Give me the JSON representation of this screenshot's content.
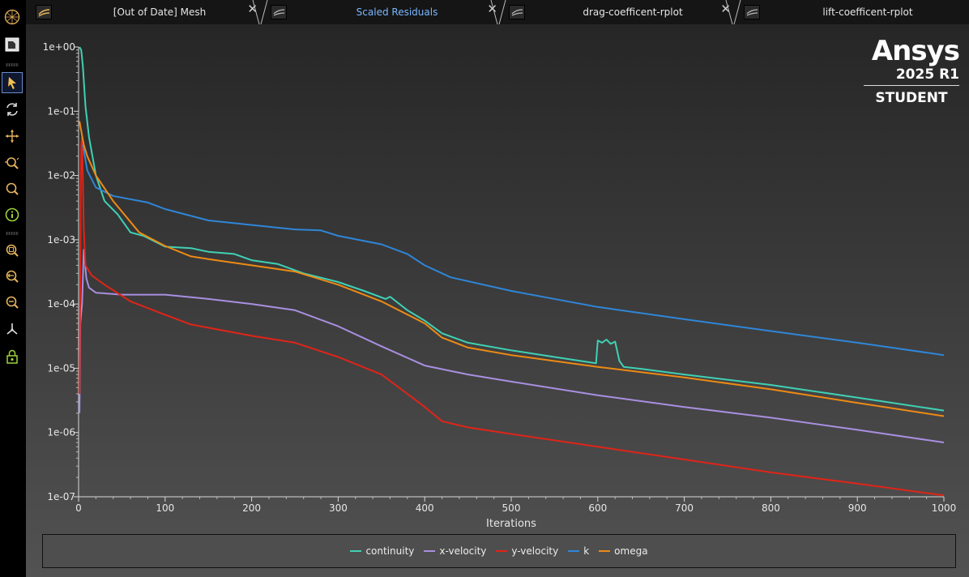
{
  "tabs": [
    {
      "label": "[Out of Date] Mesh",
      "active": false
    },
    {
      "label": "Scaled Residuals",
      "active": true
    },
    {
      "label": "drag-coefficent-rplot",
      "active": false
    },
    {
      "label": "lift-coefficent-rplot",
      "active": false
    }
  ],
  "tab_close_glyph": "✕",
  "toolbar": {
    "items": [
      {
        "name": "mesh-display-icon"
      },
      {
        "name": "select-icon"
      },
      {
        "name": "rotate-icon"
      },
      {
        "name": "pan-icon"
      },
      {
        "name": "zoom-box-icon"
      },
      {
        "name": "zoom-icon"
      },
      {
        "name": "probe-info-icon"
      },
      {
        "name": "fit-to-window-icon"
      },
      {
        "name": "zoom-in-icon"
      },
      {
        "name": "zoom-out-icon"
      },
      {
        "name": "axes-orientation-icon"
      },
      {
        "name": "view-lock-icon"
      }
    ]
  },
  "brand": {
    "name": "Ansys",
    "release": "2025 R1",
    "edition": "STUDENT"
  },
  "colors": {
    "continuity": "#3fd1b4",
    "x-velocity": "#a88fe0",
    "y-velocity": "#e02418",
    "k": "#2f86d8",
    "omega": "#ee8a14"
  },
  "chart_data": {
    "type": "line",
    "title": "",
    "xlabel": "Iterations",
    "ylabel": "",
    "xlim": [
      0,
      1000
    ],
    "ylim": [
      1e-07,
      1
    ],
    "yscale": "log",
    "x_ticks": [
      "0",
      "100",
      "200",
      "300",
      "400",
      "500",
      "600",
      "700",
      "800",
      "900",
      "1000"
    ],
    "y_ticks": [
      "1e-07",
      "1e-06",
      "1e-05",
      "1e-04",
      "1e-03",
      "1e-02",
      "1e-01",
      "1e+00"
    ],
    "grid": false,
    "legend": "bottom",
    "series": [
      {
        "name": "continuity",
        "color": "#3fd1b4",
        "points": [
          [
            1,
            1
          ],
          [
            3,
            0.9
          ],
          [
            5,
            0.5
          ],
          [
            8,
            0.12
          ],
          [
            12,
            0.04
          ],
          [
            20,
            0.01
          ],
          [
            30,
            0.004
          ],
          [
            45,
            0.0025
          ],
          [
            60,
            0.0013
          ],
          [
            75,
            0.00115
          ],
          [
            100,
            0.00078
          ],
          [
            130,
            0.00074
          ],
          [
            150,
            0.00065
          ],
          [
            180,
            0.0006
          ],
          [
            200,
            0.00048
          ],
          [
            230,
            0.00042
          ],
          [
            260,
            0.0003
          ],
          [
            300,
            0.00022
          ],
          [
            330,
            0.00016
          ],
          [
            355,
            0.00012
          ],
          [
            360,
            0.00013
          ],
          [
            380,
            8e-05
          ],
          [
            400,
            5.5e-05
          ],
          [
            420,
            3.5e-05
          ],
          [
            450,
            2.5e-05
          ],
          [
            500,
            1.9e-05
          ],
          [
            550,
            1.5e-05
          ],
          [
            598,
            1.2e-05
          ],
          [
            600,
            2.7e-05
          ],
          [
            605,
            2.5e-05
          ],
          [
            610,
            2.8e-05
          ],
          [
            615,
            2.4e-05
          ],
          [
            620,
            2.6e-05
          ],
          [
            625,
            1.3e-05
          ],
          [
            630,
            1.05e-05
          ],
          [
            650,
            9.8e-06
          ],
          [
            700,
            8e-06
          ],
          [
            800,
            5.5e-06
          ],
          [
            900,
            3.5e-06
          ],
          [
            1000,
            2.2e-06
          ]
        ]
      },
      {
        "name": "x-velocity",
        "color": "#a88fe0",
        "points": [
          [
            1,
            2e-06
          ],
          [
            2,
            5e-05
          ],
          [
            4,
            0.0001
          ],
          [
            6,
            0.0007
          ],
          [
            9,
            0.00025
          ],
          [
            12,
            0.00018
          ],
          [
            20,
            0.00015
          ],
          [
            50,
            0.00014
          ],
          [
            100,
            0.00014
          ],
          [
            150,
            0.00012
          ],
          [
            200,
            0.0001
          ],
          [
            250,
            8e-05
          ],
          [
            300,
            4.5e-05
          ],
          [
            350,
            2.2e-05
          ],
          [
            400,
            1.1e-05
          ],
          [
            450,
            8e-06
          ],
          [
            500,
            6.2e-06
          ],
          [
            600,
            3.8e-06
          ],
          [
            700,
            2.5e-06
          ],
          [
            800,
            1.7e-06
          ],
          [
            900,
            1.1e-06
          ],
          [
            1000,
            7e-07
          ]
        ]
      },
      {
        "name": "y-velocity",
        "color": "#e02418",
        "points": [
          [
            1,
            4e-06
          ],
          [
            2,
            0.0004
          ],
          [
            3,
            0.03
          ],
          [
            4,
            0.04
          ],
          [
            6,
            0.0015
          ],
          [
            8,
            0.0004
          ],
          [
            15,
            0.00028
          ],
          [
            30,
            0.0002
          ],
          [
            60,
            0.00011
          ],
          [
            100,
            6.8e-05
          ],
          [
            130,
            4.8e-05
          ],
          [
            200,
            3.2e-05
          ],
          [
            250,
            2.5e-05
          ],
          [
            300,
            1.5e-05
          ],
          [
            350,
            8e-06
          ],
          [
            380,
            4e-06
          ],
          [
            400,
            2.5e-06
          ],
          [
            420,
            1.5e-06
          ],
          [
            450,
            1.2e-06
          ],
          [
            500,
            9.5e-07
          ],
          [
            600,
            6e-07
          ],
          [
            700,
            3.8e-07
          ],
          [
            800,
            2.4e-07
          ],
          [
            900,
            1.6e-07
          ],
          [
            1000,
            1.05e-07
          ]
        ]
      },
      {
        "name": "k",
        "color": "#2f86d8",
        "points": [
          [
            5,
            0.03
          ],
          [
            10,
            0.012
          ],
          [
            20,
            0.0065
          ],
          [
            40,
            0.0048
          ],
          [
            80,
            0.0038
          ],
          [
            100,
            0.003
          ],
          [
            150,
            0.002
          ],
          [
            200,
            0.0017
          ],
          [
            250,
            0.00145
          ],
          [
            280,
            0.0014
          ],
          [
            300,
            0.00115
          ],
          [
            350,
            0.00085
          ],
          [
            380,
            0.0006
          ],
          [
            400,
            0.0004
          ],
          [
            430,
            0.00026
          ],
          [
            500,
            0.00016
          ],
          [
            600,
            9e-05
          ],
          [
            700,
            5.8e-05
          ],
          [
            800,
            3.8e-05
          ],
          [
            900,
            2.5e-05
          ],
          [
            1000,
            1.6e-05
          ]
        ]
      },
      {
        "name": "omega",
        "color": "#ee8a14",
        "points": [
          [
            1,
            0.07
          ],
          [
            3,
            0.05
          ],
          [
            6,
            0.03
          ],
          [
            10,
            0.02
          ],
          [
            20,
            0.01
          ],
          [
            40,
            0.004
          ],
          [
            70,
            0.0013
          ],
          [
            100,
            0.0008
          ],
          [
            130,
            0.00055
          ],
          [
            150,
            0.0005
          ],
          [
            200,
            0.0004
          ],
          [
            250,
            0.00032
          ],
          [
            300,
            0.0002
          ],
          [
            350,
            0.00011
          ],
          [
            400,
            5e-05
          ],
          [
            420,
            3e-05
          ],
          [
            450,
            2.1e-05
          ],
          [
            500,
            1.6e-05
          ],
          [
            600,
            1.05e-05
          ],
          [
            700,
            7.2e-06
          ],
          [
            800,
            4.7e-06
          ],
          [
            900,
            2.9e-06
          ],
          [
            1000,
            1.8e-06
          ]
        ]
      }
    ]
  }
}
